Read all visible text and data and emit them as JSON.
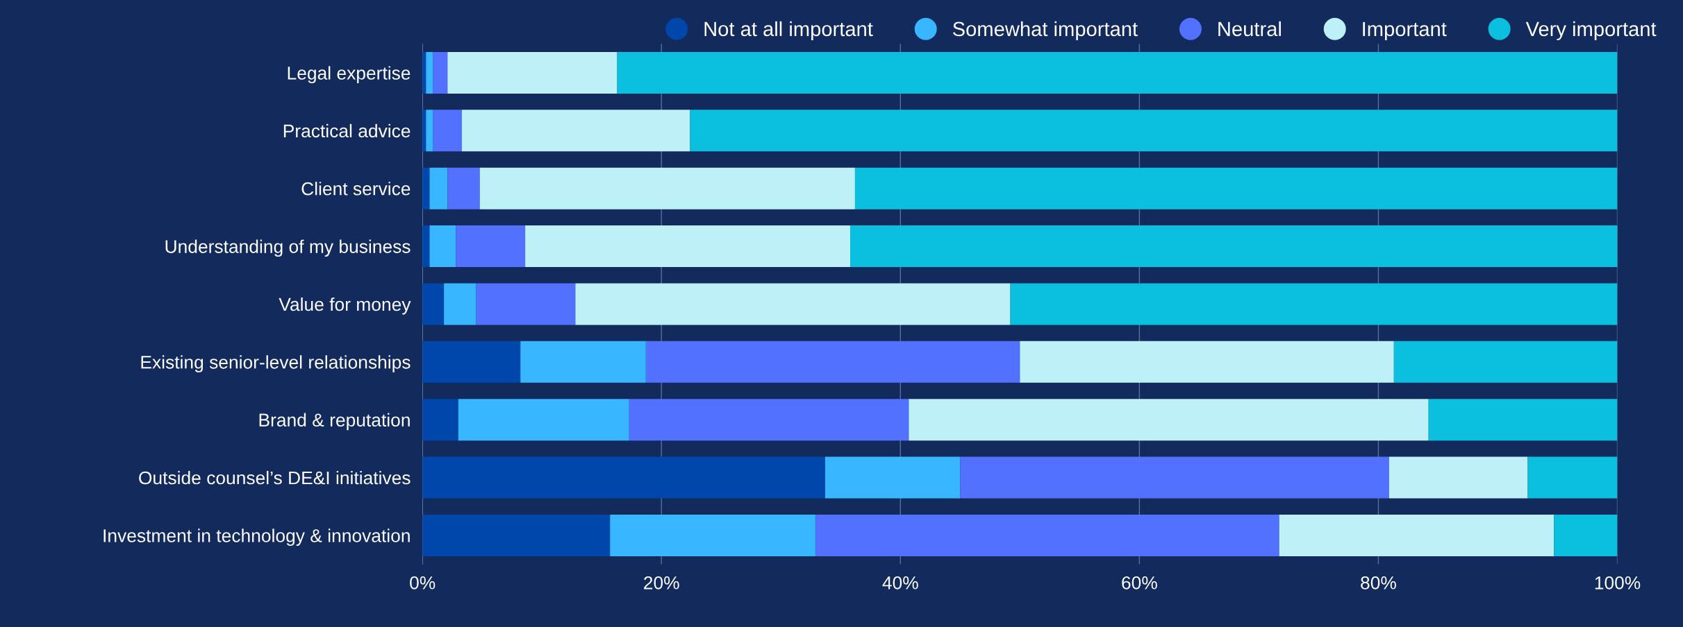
{
  "chart_data": {
    "type": "bar",
    "orientation": "horizontal",
    "stacked": true,
    "categories": [
      "Legal expertise",
      "Practical advice",
      "Client service",
      "Understanding of my business",
      "Value for money",
      "Existing senior-level relationships",
      "Brand & reputation",
      "Outside counsel’s DE&I initiatives",
      "Investment in technology & innovation"
    ],
    "series": [
      {
        "name": "Not at all important",
        "color": "#0047ab",
        "values": [
          0.3,
          0.3,
          0.6,
          0.6,
          1.8,
          8.2,
          3.0,
          33.7,
          15.7
        ]
      },
      {
        "name": "Somewhat important",
        "color": "#38b6ff",
        "values": [
          0.6,
          0.6,
          1.5,
          2.2,
          2.7,
          10.5,
          14.3,
          11.3,
          17.2
        ]
      },
      {
        "name": "Neutral",
        "color": "#5271ff",
        "values": [
          1.2,
          2.4,
          2.7,
          5.8,
          8.3,
          31.3,
          23.4,
          35.9,
          38.8
        ]
      },
      {
        "name": "Important",
        "color": "#bdf0f7",
        "values": [
          14.2,
          19.1,
          31.4,
          27.2,
          36.4,
          31.3,
          43.5,
          11.6,
          23.0
        ]
      },
      {
        "name": "Very important",
        "color": "#0bc0df",
        "values": [
          83.7,
          77.6,
          63.8,
          64.3,
          50.8,
          18.7,
          15.8,
          7.5,
          5.3
        ]
      }
    ],
    "xlim": [
      0,
      100
    ],
    "xticks": [
      {
        "value": 0,
        "label": "0%"
      },
      {
        "value": 20,
        "label": "20%"
      },
      {
        "value": 40,
        "label": "40%"
      },
      {
        "value": 60,
        "label": "60%"
      },
      {
        "value": 80,
        "label": "80%"
      },
      {
        "value": 100,
        "label": "100%"
      }
    ],
    "grid": "x",
    "legend": "top right"
  }
}
